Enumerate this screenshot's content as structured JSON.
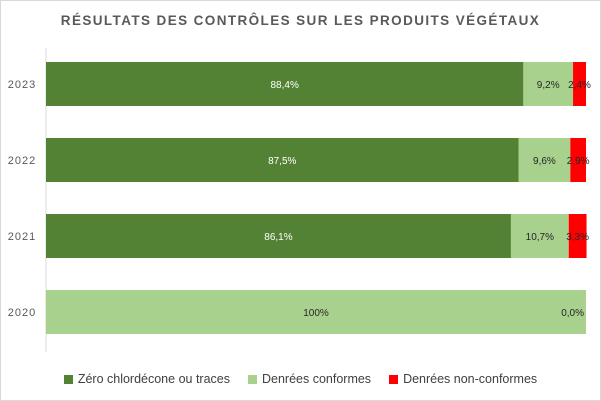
{
  "chart_data": {
    "type": "bar",
    "orientation": "horizontal",
    "stacked": true,
    "title": "RÉSULTATS DES CONTRÔLES SUR LES PRODUITS VÉGÉTAUX",
    "categories": [
      "2023",
      "2022",
      "2021",
      "2020"
    ],
    "series": [
      {
        "name": "Zéro chlordécone ou traces",
        "color": "#548235",
        "values": [
          88.4,
          87.5,
          86.1,
          0
        ],
        "labels": [
          "88,4%",
          "87,5%",
          "86,1%",
          ""
        ]
      },
      {
        "name": "Denrées conformes",
        "color": "#a9d18e",
        "values": [
          9.2,
          9.6,
          10.7,
          100
        ],
        "labels": [
          "9,2%",
          "9,6%",
          "10,7%",
          "100%"
        ]
      },
      {
        "name": "Denrées non-conformes",
        "color": "#ff0000",
        "values": [
          2.4,
          2.9,
          3.3,
          0
        ],
        "labels": [
          "2,4%",
          "2,9%",
          "3,3%",
          "0,0%"
        ]
      }
    ],
    "xlim": [
      0,
      100
    ],
    "grid": false,
    "legend_position": "bottom"
  }
}
